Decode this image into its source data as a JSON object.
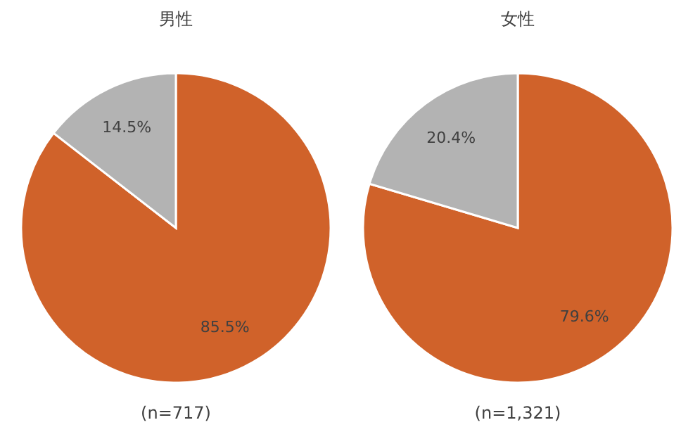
{
  "chart_data": [
    {
      "type": "pie",
      "title": "男性",
      "categories": [
        null,
        null
      ],
      "values": [
        85.5,
        14.5
      ],
      "colors": [
        "#d0622a",
        "#b3b3b3"
      ],
      "value_labels": [
        "85.5%",
        "14.5%"
      ],
      "annotations": [
        "(n=717)"
      ]
    },
    {
      "type": "pie",
      "title": "女性",
      "categories": [
        null,
        null
      ],
      "values": [
        79.6,
        20.4
      ],
      "colors": [
        "#d0622a",
        "#b3b3b3"
      ],
      "value_labels": [
        "79.6%",
        "20.4%"
      ],
      "annotations": [
        "(n=1,321)"
      ]
    }
  ]
}
